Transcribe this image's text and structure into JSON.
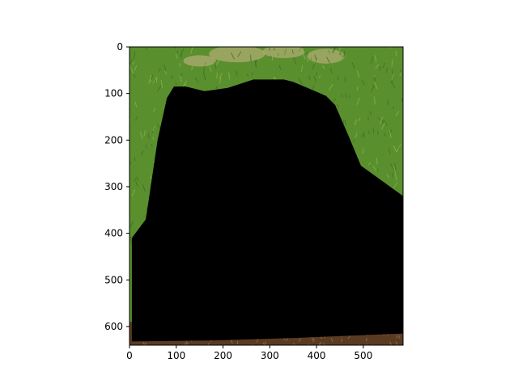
{
  "chart_data": {
    "type": "image",
    "title": "",
    "xlabel": "",
    "ylabel": "",
    "xlim": [
      0,
      585
    ],
    "ylim": [
      640,
      0
    ],
    "x_ticks": [
      0,
      100,
      200,
      300,
      400,
      500
    ],
    "y_ticks": [
      0,
      100,
      200,
      300,
      400,
      500,
      600
    ],
    "image_description": "grass photo partially covered by a black mask region",
    "mask_polygon": [
      [
        5,
        410
      ],
      [
        35,
        370
      ],
      [
        60,
        200
      ],
      [
        80,
        110
      ],
      [
        95,
        85
      ],
      [
        120,
        85
      ],
      [
        160,
        95
      ],
      [
        210,
        88
      ],
      [
        265,
        70
      ],
      [
        330,
        70
      ],
      [
        350,
        75
      ],
      [
        420,
        105
      ],
      [
        440,
        125
      ],
      [
        470,
        195
      ],
      [
        495,
        255
      ],
      [
        585,
        320
      ],
      [
        585,
        615
      ],
      [
        340,
        625
      ],
      [
        175,
        630
      ],
      [
        5,
        632
      ]
    ],
    "colors": {
      "mask": "#000000",
      "grass_dark": "#3f6e23",
      "grass_mid": "#5a8f2e",
      "grass_light": "#88b34a",
      "dry_patch": "#b5ad78",
      "soil": "#5a3b22",
      "fur": "#8a6a3a"
    }
  }
}
